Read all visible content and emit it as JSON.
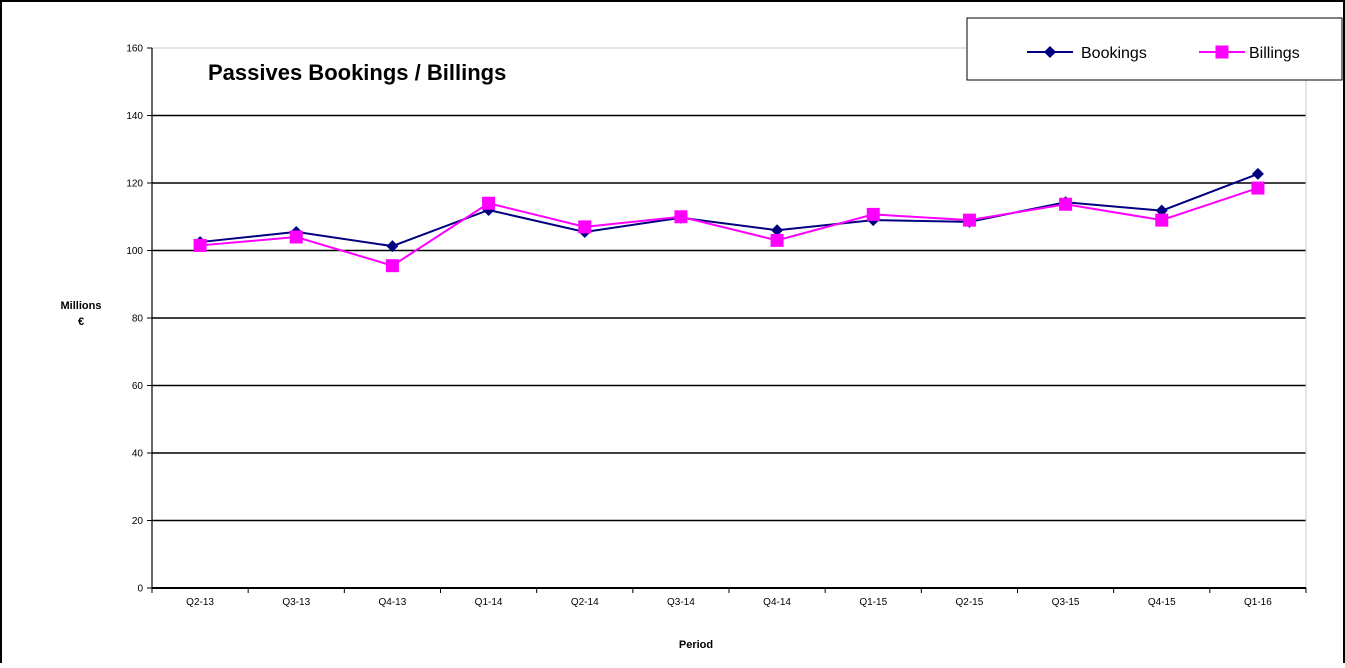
{
  "chart_data": {
    "type": "line",
    "title": "Passives Bookings / Billings",
    "xlabel": "Period",
    "ylabel_line1": "Millions",
    "ylabel_line2": "€",
    "ylim": [
      0,
      160
    ],
    "yticks": [
      0,
      20,
      40,
      60,
      80,
      100,
      120,
      140,
      160
    ],
    "grid": true,
    "legend_position": "top-right",
    "categories": [
      "Q2-13",
      "Q3-13",
      "Q4-13",
      "Q1-14",
      "Q2-14",
      "Q3-14",
      "Q4-14",
      "Q1-15",
      "Q2-15",
      "Q3-15",
      "Q4-15",
      "Q1-16"
    ],
    "series": [
      {
        "name": "Bookings",
        "color": "#000080",
        "marker": "diamond",
        "values": [
          102.5,
          105.5,
          101.3,
          112.0,
          105.5,
          109.7,
          106.0,
          109.0,
          108.5,
          114.3,
          111.8,
          122.7
        ]
      },
      {
        "name": "Billings",
        "color": "#FF00FF",
        "marker": "square",
        "values": [
          101.5,
          104.0,
          95.5,
          114.0,
          107.0,
          110.0,
          103.0,
          110.7,
          109.0,
          113.7,
          109.0,
          118.5
        ]
      }
    ]
  }
}
